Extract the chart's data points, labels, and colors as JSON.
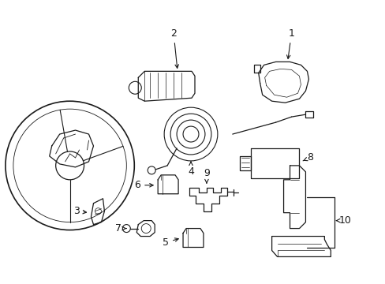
{
  "background_color": "#ffffff",
  "line_color": "#1a1a1a",
  "figsize": [
    4.89,
    3.6
  ],
  "dpi": 100,
  "label_fontsize": 9
}
